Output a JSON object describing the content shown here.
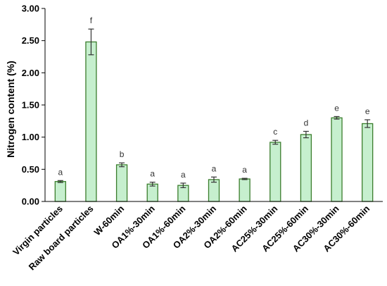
{
  "chart_data": {
    "type": "bar",
    "title": "",
    "xlabel": "",
    "ylabel": "Nitrogen content (%)",
    "ylim": [
      0,
      3.0
    ],
    "yticks": [
      "0.00",
      "0.50",
      "1.00",
      "1.50",
      "2.00",
      "2.50",
      "3.00"
    ],
    "grid": false,
    "categories": [
      "Virgin particles",
      "Raw board particles",
      "W-60min",
      "OA1%-30min",
      "OA1%-60min",
      "OA2%-30min",
      "OA2%-60min",
      "AC25%-30min",
      "AC25%-60min",
      "AC30%-30min",
      "AC30%-60min"
    ],
    "values": [
      0.31,
      2.48,
      0.57,
      0.27,
      0.25,
      0.34,
      0.35,
      0.92,
      1.04,
      1.3,
      1.21
    ],
    "errors": [
      0.015,
      0.2,
      0.03,
      0.03,
      0.035,
      0.04,
      0.01,
      0.03,
      0.05,
      0.02,
      0.06
    ],
    "letters": [
      "a",
      "f",
      "b",
      "a",
      "a",
      "a",
      "a",
      "c",
      "d",
      "e",
      "e"
    ],
    "colors": {
      "bar_fill": "#c6efce",
      "bar_stroke": "#3a7d2c",
      "axis": "#000000",
      "error_bar": "#333333"
    }
  }
}
